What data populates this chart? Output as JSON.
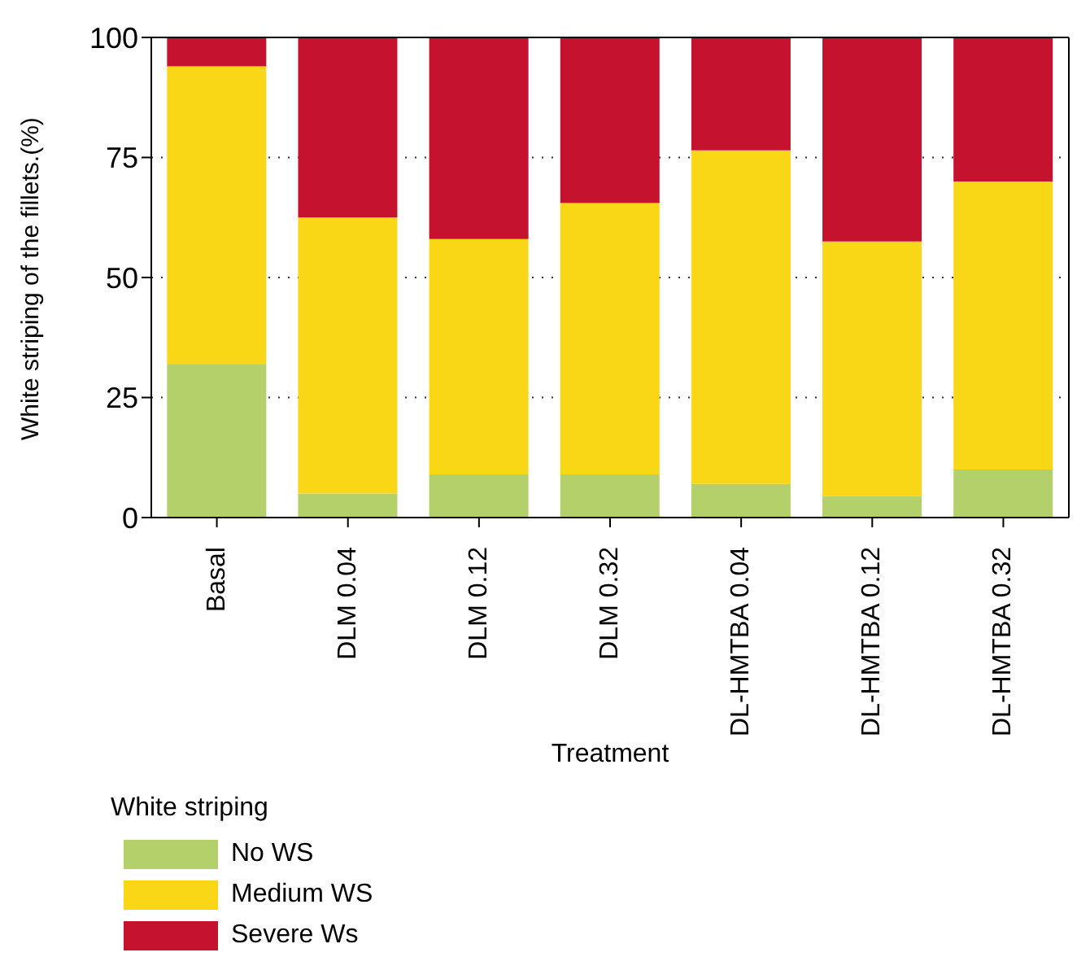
{
  "chart_data": {
    "type": "bar",
    "stacked": true,
    "xlabel": "Treatment",
    "ylabel": "White striping of the fillets.(%)",
    "legend_title": "White striping",
    "legend": "bottom left",
    "grid": true,
    "categories": [
      "Basal",
      "DLM 0.04",
      "DLM 0.12",
      "DLM 0.32",
      "DL-HMTBA 0.04",
      "DL-HMTBA 0.12",
      "DL-HMTBA 0.32"
    ],
    "ylim": [
      0,
      100
    ],
    "yticks": [
      0,
      25,
      50,
      75,
      100
    ],
    "series": [
      {
        "name": "No WS",
        "color": "#b3d06a",
        "values": [
          32,
          5,
          9,
          9,
          7,
          4.5,
          10
        ]
      },
      {
        "name": "Medium WS",
        "color": "#f9d616",
        "values": [
          62,
          57.5,
          49,
          56.5,
          69.5,
          53,
          60
        ]
      },
      {
        "name": "Severe Ws",
        "color": "#c5132f",
        "values": [
          6,
          37.5,
          42,
          34.5,
          23.5,
          42.5,
          30
        ]
      }
    ]
  }
}
